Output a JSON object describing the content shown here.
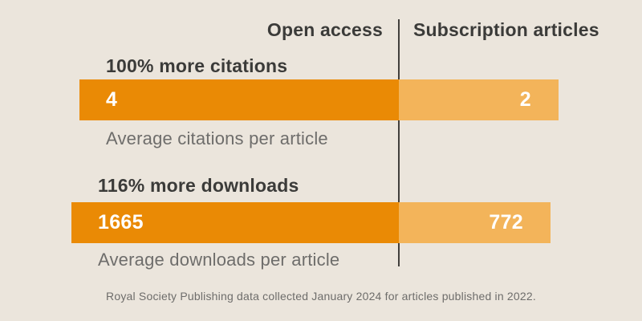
{
  "page": {
    "background_color": "#EBE5DC"
  },
  "columns": {
    "left": "Open access",
    "right": "Subscription articles"
  },
  "chart_data": {
    "type": "bar",
    "orientation": "horizontal-paired",
    "title": "",
    "legend_position": "top",
    "columns": [
      "Open access",
      "Subscription articles"
    ],
    "rows": [
      {
        "headline": "100% more citations",
        "open_access": 4,
        "subscription": 2,
        "caption": "Average citations per article"
      },
      {
        "headline": "116% more downloads",
        "open_access": 1665,
        "subscription": 772,
        "caption": "Average downloads per article"
      }
    ],
    "colors": {
      "open_access": "#EA8A05",
      "subscription": "#F3B45A",
      "divider": "#413F3C",
      "heading_text": "#3B3B39",
      "caption_text": "#6E6D6B",
      "bar_value_text": "#FFFFFF"
    }
  },
  "footer": "Royal Society Publishing data collected January 2024 for articles published in 2022."
}
